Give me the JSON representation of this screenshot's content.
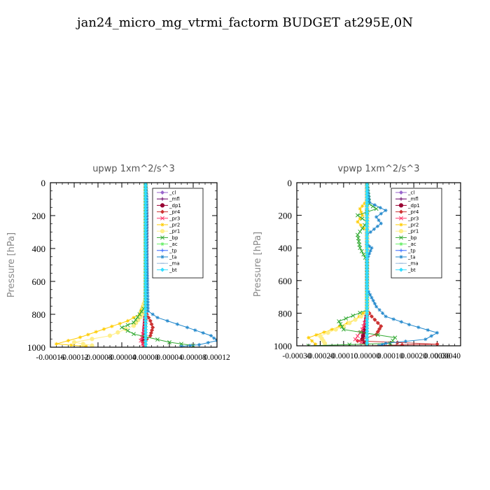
{
  "title": "jan24_micro_mg_vtrmi_factorm  BUDGET at295E,0N",
  "chart_data": [
    {
      "type": "line",
      "title": "upwp   1xm^2/s^3",
      "ylabel": "Pressure [hPa]",
      "ylim": [
        0,
        1000
      ],
      "y_inverted": true,
      "yticks": [
        0,
        200,
        400,
        600,
        800,
        1000
      ],
      "xlim": [
        -0.00016,
        0.00012
      ],
      "xtick_labels": [
        "-0.00016",
        "-0.00012",
        "-0.00008",
        "-0.00004",
        "0.00000",
        "0.00004",
        "0.00008",
        "0.00012"
      ],
      "legend_position": "upper-right",
      "series": [
        {
          "name": "_cl",
          "color": "#9966cc",
          "marker": "diamond",
          "points": [
            [
              0,
              0
            ],
            [
              0,
              1000
            ]
          ]
        },
        {
          "name": "_mfl",
          "color": "#660066",
          "marker": "plus",
          "points": [
            [
              0,
              0
            ],
            [
              0,
              1000
            ]
          ]
        },
        {
          "name": "_dp1",
          "color": "#990033",
          "marker": "circle",
          "points": [
            [
              0,
              0
            ],
            [
              1e-06,
              200
            ],
            [
              1e-06,
              500
            ],
            [
              0,
              800
            ],
            [
              -2e-06,
              900
            ],
            [
              -4e-06,
              960
            ],
            [
              -2e-06,
              1000
            ]
          ]
        },
        {
          "name": "_pr4",
          "color": "#cc3333",
          "marker": "diamond",
          "points": [
            [
              0,
              0
            ],
            [
              0,
              700
            ],
            [
              2e-06,
              800
            ],
            [
              8e-06,
              840
            ],
            [
              1.2e-05,
              880
            ],
            [
              8e-06,
              930
            ],
            [
              -4e-06,
              970
            ],
            [
              -2e-06,
              1000
            ]
          ]
        },
        {
          "name": "_pr3",
          "color": "#ff3366",
          "marker": "cross",
          "points": [
            [
              0,
              0
            ],
            [
              0,
              800
            ],
            [
              -3e-06,
              900
            ],
            [
              -8e-06,
              960
            ],
            [
              -2e-06,
              1000
            ]
          ]
        },
        {
          "name": "_pr2",
          "color": "#ffcc00",
          "marker": "star",
          "points": [
            [
              0,
              0
            ],
            [
              0,
              700
            ],
            [
              -1e-05,
              800
            ],
            [
              -3e-05,
              840
            ],
            [
              -7e-05,
              890
            ],
            [
              -0.00011,
              940
            ],
            [
              -0.00015,
              980
            ],
            [
              -0.0001,
              995
            ]
          ]
        },
        {
          "name": "_pr1",
          "color": "#ffee88",
          "marker": "circle",
          "points": [
            [
              0,
              0
            ],
            [
              0,
              700
            ],
            [
              -5e-06,
              800
            ],
            [
              -2e-05,
              870
            ],
            [
              -6e-05,
              930
            ],
            [
              -0.00012,
              970
            ],
            [
              -9e-05,
              990
            ]
          ]
        },
        {
          "name": "_bp",
          "color": "#33aa33",
          "marker": "cross",
          "points": [
            [
              0,
              0
            ],
            [
              0,
              750
            ],
            [
              -2e-05,
              850
            ],
            [
              -4e-05,
              880
            ],
            [
              -2e-05,
              920
            ],
            [
              4e-05,
              970
            ],
            [
              8e-05,
              990
            ]
          ]
        },
        {
          "name": "_ac",
          "color": "#66ee66",
          "marker": "star",
          "points": [
            [
              0,
              0
            ],
            [
              0,
              1000
            ]
          ]
        },
        {
          "name": "_tp",
          "color": "#3366ff",
          "marker": "plus",
          "points": [
            [
              0,
              0
            ],
            [
              0,
              1000
            ]
          ]
        },
        {
          "name": "_ta",
          "color": "#2288cc",
          "marker": "star",
          "points": [
            [
              0,
              0
            ],
            [
              2e-06,
              100
            ],
            [
              2e-06,
              400
            ],
            [
              4e-06,
              780
            ],
            [
              2e-05,
              820
            ],
            [
              7e-05,
              880
            ],
            [
              0.00011,
              930
            ],
            [
              0.00012,
              960
            ],
            [
              9e-05,
              985
            ],
            [
              6e-05,
              995
            ]
          ]
        },
        {
          "name": "_ma",
          "color": "#99bbdd",
          "marker": "dash",
          "points": [
            [
              0,
              0
            ],
            [
              0,
              1000
            ]
          ]
        },
        {
          "name": "_bt",
          "color": "#33ddff",
          "marker": "diamond",
          "points": [
            [
              0,
              0
            ],
            [
              0,
              1000
            ]
          ]
        }
      ]
    },
    {
      "type": "line",
      "title": "vpwp   1xm^2/s^3",
      "ylabel": "Pressure [hPa]",
      "ylim": [
        0,
        1000
      ],
      "y_inverted": true,
      "yticks": [
        0,
        200,
        400,
        600,
        800,
        1000
      ],
      "xlim": [
        -0.0003,
        0.0004
      ],
      "xtick_labels": [
        "-0.00030",
        "-0.00020",
        "-0.00010",
        "0.00000",
        "0.00010",
        "0.00020",
        "0.00030",
        "0.00040"
      ],
      "legend_position": "upper-right",
      "series": [
        {
          "name": "_cl",
          "color": "#9966cc",
          "marker": "diamond",
          "points": [
            [
              0,
              0
            ],
            [
              0,
              1000
            ]
          ]
        },
        {
          "name": "_mfl",
          "color": "#660066",
          "marker": "plus",
          "points": [
            [
              0,
              0
            ],
            [
              0,
              1000
            ]
          ]
        },
        {
          "name": "_dp1",
          "color": "#990033",
          "marker": "circle",
          "points": [
            [
              0,
              0
            ],
            [
              0,
              800
            ],
            [
              -1e-05,
              900
            ],
            [
              -2e-05,
              960
            ],
            [
              0,
              1000
            ]
          ]
        },
        {
          "name": "_pr4",
          "color": "#cc3333",
          "marker": "diamond",
          "points": [
            [
              0,
              0
            ],
            [
              0,
              780
            ],
            [
              2e-05,
              820
            ],
            [
              6e-05,
              880
            ],
            [
              4e-05,
              930
            ],
            [
              -4e-05,
              970
            ],
            [
              0.0003,
              990
            ],
            [
              0,
              1000
            ]
          ]
        },
        {
          "name": "_pr3",
          "color": "#ff3366",
          "marker": "cross",
          "points": [
            [
              0,
              0
            ],
            [
              0,
              820
            ],
            [
              -2e-05,
              900
            ],
            [
              -5e-05,
              960
            ],
            [
              0,
              1000
            ]
          ]
        },
        {
          "name": "_pr2",
          "color": "#ffcc00",
          "marker": "star",
          "points": [
            [
              0,
              0
            ],
            [
              0,
              110
            ],
            [
              -3e-05,
              160
            ],
            [
              -2e-05,
              200
            ],
            [
              -4e-05,
              240
            ],
            [
              0,
              300
            ],
            [
              0,
              780
            ],
            [
              -5e-05,
              840
            ],
            [
              -0.00015,
              900
            ],
            [
              -0.00025,
              950
            ],
            [
              -0.00022,
              990
            ]
          ]
        },
        {
          "name": "_pr1",
          "color": "#ffee88",
          "marker": "circle",
          "points": [
            [
              0,
              0
            ],
            [
              0,
              800
            ],
            [
              -0.0001,
              880
            ],
            [
              -0.0002,
              940
            ],
            [
              -0.00018,
              985
            ]
          ]
        },
        {
          "name": "_bp",
          "color": "#33aa33",
          "marker": "cross",
          "points": [
            [
              0,
              0
            ],
            [
              1e-05,
              130
            ],
            [
              4e-05,
              160
            ],
            [
              -4e-05,
              200
            ],
            [
              0,
              240
            ],
            [
              -4e-05,
              320
            ],
            [
              -3e-05,
              400
            ],
            [
              0,
              480
            ],
            [
              0,
              780
            ],
            [
              -0.00012,
              850
            ],
            [
              -0.0001,
              900
            ],
            [
              0.00012,
              950
            ],
            [
              0.0001,
              985
            ],
            [
              -0.00025,
              1000
            ]
          ]
        },
        {
          "name": "_ac",
          "color": "#66ee66",
          "marker": "star",
          "points": [
            [
              0,
              0
            ],
            [
              0,
              1000
            ]
          ]
        },
        {
          "name": "_tp",
          "color": "#3366ff",
          "marker": "plus",
          "points": [
            [
              0,
              0
            ],
            [
              0,
              1000
            ]
          ]
        },
        {
          "name": "_ta",
          "color": "#2288cc",
          "marker": "star",
          "points": [
            [
              0,
              0
            ],
            [
              1e-05,
              120
            ],
            [
              8e-05,
              170
            ],
            [
              4e-05,
              210
            ],
            [
              6e-05,
              250
            ],
            [
              0,
              320
            ],
            [
              0,
              380
            ],
            [
              2e-05,
              400
            ],
            [
              0,
              470
            ],
            [
              0,
              650
            ],
            [
              4e-05,
              760
            ],
            [
              8e-05,
              820
            ],
            [
              0.00018,
              870
            ],
            [
              0.0003,
              920
            ],
            [
              0.00025,
              960
            ],
            [
              8e-05,
              985
            ],
            [
              5e-05,
              1000
            ]
          ]
        },
        {
          "name": "_ma",
          "color": "#99bbdd",
          "marker": "dash",
          "points": [
            [
              0,
              0
            ],
            [
              0,
              1000
            ]
          ]
        },
        {
          "name": "_bt",
          "color": "#33ddff",
          "marker": "diamond",
          "points": [
            [
              0,
              0
            ],
            [
              0,
              1000
            ]
          ]
        }
      ]
    }
  ]
}
